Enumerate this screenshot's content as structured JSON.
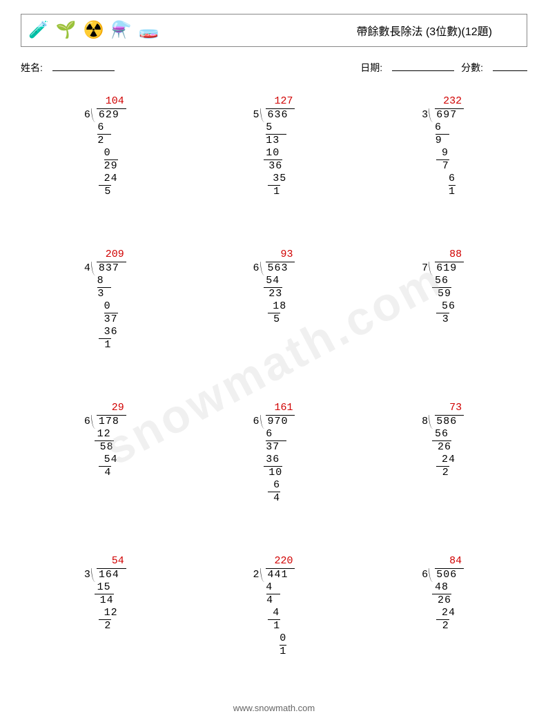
{
  "header": {
    "icons": [
      "🧪",
      "🌱",
      "☢️",
      "⚗️",
      "🧫"
    ],
    "title": "帶餘數長除法 (3位數)(12題)"
  },
  "info": {
    "name_label": "姓名:",
    "date_label": "日期:",
    "score_label": "分數:"
  },
  "colors": {
    "quotient": "#d00000",
    "text": "#000000",
    "border": "#888888",
    "watermark": "rgba(200,200,200,0.28)"
  },
  "problems": [
    {
      "quotient": "104",
      "divisor": "6",
      "dividend": "629",
      "steps": [
        {
          "val": "6 ",
          "pad": 0,
          "bar": false
        },
        {
          "val": " 2 ",
          "pad": 0,
          "bar": true,
          "barw": 2
        },
        {
          "val": "0 ",
          "pad": 1,
          "bar": false
        },
        {
          "val": "29",
          "pad": 1,
          "bar": true,
          "barw": 2
        },
        {
          "val": "24",
          "pad": 1,
          "bar": false
        },
        {
          "val": " 5",
          "pad": 1,
          "bar": true,
          "barw": 2
        }
      ]
    },
    {
      "quotient": "127",
      "divisor": "5",
      "dividend": "636",
      "steps": [
        {
          "val": "5  ",
          "pad": 0,
          "bar": false
        },
        {
          "val": "13 ",
          "pad": 0,
          "bar": true,
          "barw": 3
        },
        {
          "val": "10 ",
          "pad": 0,
          "bar": false
        },
        {
          "val": " 36",
          "pad": 0,
          "bar": true,
          "barw": 3
        },
        {
          "val": "35",
          "pad": 1,
          "bar": false
        },
        {
          "val": " 1",
          "pad": 1,
          "bar": true,
          "barw": 2
        }
      ]
    },
    {
      "quotient": "232",
      "divisor": "3",
      "dividend": "697",
      "steps": [
        {
          "val": "6  ",
          "pad": 0,
          "bar": false
        },
        {
          "val": " 9 ",
          "pad": 0,
          "bar": true,
          "barw": 2
        },
        {
          "val": "9 ",
          "pad": 1,
          "bar": false
        },
        {
          "val": " 7",
          "pad": 1,
          "bar": true,
          "barw": 2
        },
        {
          "val": "6",
          "pad": 2,
          "bar": false
        },
        {
          "val": "1",
          "pad": 2,
          "bar": true,
          "barw": 1
        }
      ]
    },
    {
      "quotient": "209",
      "divisor": "4",
      "dividend": "837",
      "steps": [
        {
          "val": "8  ",
          "pad": 0,
          "bar": false
        },
        {
          "val": " 3 ",
          "pad": 0,
          "bar": true,
          "barw": 2
        },
        {
          "val": "0 ",
          "pad": 1,
          "bar": false
        },
        {
          "val": "37",
          "pad": 1,
          "bar": true,
          "barw": 2
        },
        {
          "val": "36",
          "pad": 1,
          "bar": false
        },
        {
          "val": " 1",
          "pad": 1,
          "bar": true,
          "barw": 2
        }
      ]
    },
    {
      "quotient": "93",
      "divisor": "6",
      "dividend": "563",
      "steps": [
        {
          "val": "54 ",
          "pad": 0,
          "bar": false
        },
        {
          "val": " 23",
          "pad": 0,
          "bar": true,
          "barw": 3
        },
        {
          "val": "18",
          "pad": 1,
          "bar": false
        },
        {
          "val": " 5",
          "pad": 1,
          "bar": true,
          "barw": 2
        }
      ]
    },
    {
      "quotient": "88",
      "divisor": "7",
      "dividend": "619",
      "steps": [
        {
          "val": "56 ",
          "pad": 0,
          "bar": false
        },
        {
          "val": " 59",
          "pad": 0,
          "bar": true,
          "barw": 3
        },
        {
          "val": "56",
          "pad": 1,
          "bar": false
        },
        {
          "val": " 3",
          "pad": 1,
          "bar": true,
          "barw": 2
        }
      ]
    },
    {
      "quotient": "29",
      "divisor": "6",
      "dividend": "178",
      "steps": [
        {
          "val": "12 ",
          "pad": 0,
          "bar": false
        },
        {
          "val": " 58",
          "pad": 0,
          "bar": true,
          "barw": 3
        },
        {
          "val": "54",
          "pad": 1,
          "bar": false
        },
        {
          "val": " 4",
          "pad": 1,
          "bar": true,
          "barw": 2
        }
      ]
    },
    {
      "quotient": "161",
      "divisor": "6",
      "dividend": "970",
      "steps": [
        {
          "val": "6  ",
          "pad": 0,
          "bar": false
        },
        {
          "val": "37 ",
          "pad": 0,
          "bar": true,
          "barw": 3
        },
        {
          "val": "36 ",
          "pad": 0,
          "bar": false
        },
        {
          "val": " 10",
          "pad": 0,
          "bar": true,
          "barw": 3
        },
        {
          "val": " 6",
          "pad": 1,
          "bar": false
        },
        {
          "val": " 4",
          "pad": 1,
          "bar": true,
          "barw": 2
        }
      ]
    },
    {
      "quotient": "73",
      "divisor": "8",
      "dividend": "586",
      "steps": [
        {
          "val": "56 ",
          "pad": 0,
          "bar": false
        },
        {
          "val": " 26",
          "pad": 0,
          "bar": true,
          "barw": 3
        },
        {
          "val": "24",
          "pad": 1,
          "bar": false
        },
        {
          "val": " 2",
          "pad": 1,
          "bar": true,
          "barw": 2
        }
      ]
    },
    {
      "quotient": "54",
      "divisor": "3",
      "dividend": "164",
      "steps": [
        {
          "val": "15 ",
          "pad": 0,
          "bar": false
        },
        {
          "val": " 14",
          "pad": 0,
          "bar": true,
          "barw": 3
        },
        {
          "val": "12",
          "pad": 1,
          "bar": false
        },
        {
          "val": " 2",
          "pad": 1,
          "bar": true,
          "barw": 2
        }
      ]
    },
    {
      "quotient": "220",
      "divisor": "2",
      "dividend": "441",
      "steps": [
        {
          "val": "4  ",
          "pad": 0,
          "bar": false
        },
        {
          "val": " 4 ",
          "pad": 0,
          "bar": true,
          "barw": 2
        },
        {
          "val": "4 ",
          "pad": 1,
          "bar": false
        },
        {
          "val": " 1",
          "pad": 1,
          "bar": true,
          "barw": 2
        },
        {
          "val": "0",
          "pad": 2,
          "bar": false
        },
        {
          "val": "1",
          "pad": 2,
          "bar": true,
          "barw": 1
        }
      ]
    },
    {
      "quotient": "84",
      "divisor": "6",
      "dividend": "506",
      "steps": [
        {
          "val": "48 ",
          "pad": 0,
          "bar": false
        },
        {
          "val": " 26",
          "pad": 0,
          "bar": true,
          "barw": 3
        },
        {
          "val": "24",
          "pad": 1,
          "bar": false
        },
        {
          "val": " 2",
          "pad": 1,
          "bar": true,
          "barw": 2
        }
      ]
    }
  ],
  "footer": "www.snowmath.com",
  "watermark": "snowmath.com"
}
